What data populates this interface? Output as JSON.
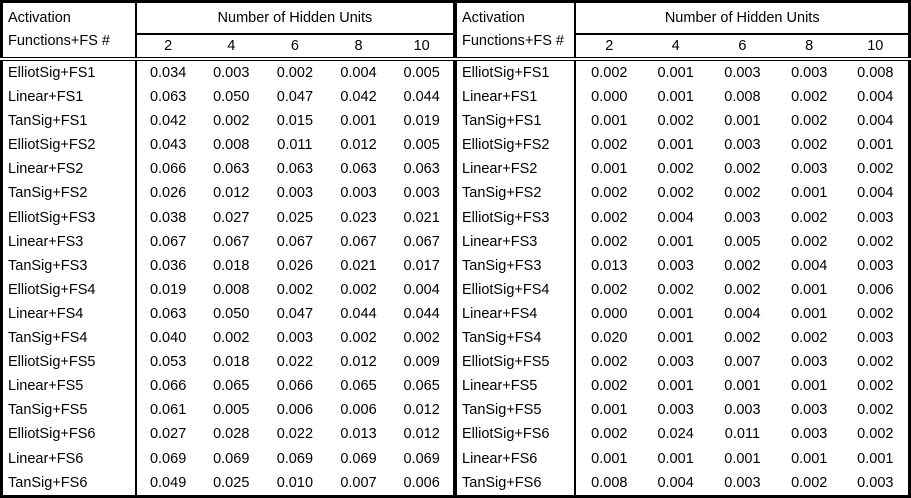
{
  "tables": [
    {
      "side": "left",
      "header": {
        "title_line1": "Activation",
        "title_line2": "Functions+FS #",
        "span_title": "Number of Hidden Units",
        "units": [
          "2",
          "4",
          "6",
          "8",
          "10"
        ]
      },
      "rows": [
        {
          "label": "ElliotSig+FS1",
          "values": [
            "0.034",
            "0.003",
            "0.002",
            "0.004",
            "0.005"
          ]
        },
        {
          "label": "Linear+FS1",
          "values": [
            "0.063",
            "0.050",
            "0.047",
            "0.042",
            "0.044"
          ]
        },
        {
          "label": "TanSig+FS1",
          "values": [
            "0.042",
            "0.002",
            "0.015",
            "0.001",
            "0.019"
          ]
        },
        {
          "label": "ElliotSig+FS2",
          "values": [
            "0.043",
            "0.008",
            "0.011",
            "0.012",
            "0.005"
          ]
        },
        {
          "label": "Linear+FS2",
          "values": [
            "0.066",
            "0.063",
            "0.063",
            "0.063",
            "0.063"
          ]
        },
        {
          "label": "TanSig+FS2",
          "values": [
            "0.026",
            "0.012",
            "0.003",
            "0.003",
            "0.003"
          ]
        },
        {
          "label": "ElliotSig+FS3",
          "values": [
            "0.038",
            "0.027",
            "0.025",
            "0.023",
            "0.021"
          ]
        },
        {
          "label": "Linear+FS3",
          "values": [
            "0.067",
            "0.067",
            "0.067",
            "0.067",
            "0.067"
          ]
        },
        {
          "label": "TanSig+FS3",
          "values": [
            "0.036",
            "0.018",
            "0.026",
            "0.021",
            "0.017"
          ]
        },
        {
          "label": "ElliotSig+FS4",
          "values": [
            "0.019",
            "0.008",
            "0.002",
            "0.002",
            "0.004"
          ]
        },
        {
          "label": "Linear+FS4",
          "values": [
            "0.063",
            "0.050",
            "0.047",
            "0.044",
            "0.044"
          ]
        },
        {
          "label": "TanSig+FS4",
          "values": [
            "0.040",
            "0.002",
            "0.003",
            "0.002",
            "0.002"
          ]
        },
        {
          "label": "ElliotSig+FS5",
          "values": [
            "0.053",
            "0.018",
            "0.022",
            "0.012",
            "0.009"
          ]
        },
        {
          "label": "Linear+FS5",
          "values": [
            "0.066",
            "0.065",
            "0.066",
            "0.065",
            "0.065"
          ]
        },
        {
          "label": "TanSig+FS5",
          "values": [
            "0.061",
            "0.005",
            "0.006",
            "0.006",
            "0.012"
          ]
        },
        {
          "label": "ElliotSig+FS6",
          "values": [
            "0.027",
            "0.028",
            "0.022",
            "0.013",
            "0.012"
          ]
        },
        {
          "label": "Linear+FS6",
          "values": [
            "0.069",
            "0.069",
            "0.069",
            "0.069",
            "0.069"
          ]
        },
        {
          "label": "TanSig+FS6",
          "values": [
            "0.049",
            "0.025",
            "0.010",
            "0.007",
            "0.006"
          ]
        }
      ]
    },
    {
      "side": "right",
      "header": {
        "title_line1": "Activation",
        "title_line2": "Functions+FS #",
        "span_title": "Number of Hidden Units",
        "units": [
          "2",
          "4",
          "6",
          "8",
          "10"
        ]
      },
      "rows": [
        {
          "label": "ElliotSig+FS1",
          "values": [
            "0.002",
            "0.001",
            "0.003",
            "0.003",
            "0.008"
          ]
        },
        {
          "label": "Linear+FS1",
          "values": [
            "0.000",
            "0.001",
            "0.008",
            "0.002",
            "0.004"
          ]
        },
        {
          "label": "TanSig+FS1",
          "values": [
            "0.001",
            "0.002",
            "0.001",
            "0.002",
            "0.004"
          ]
        },
        {
          "label": "ElliotSig+FS2",
          "values": [
            "0.002",
            "0.001",
            "0.003",
            "0.002",
            "0.001"
          ]
        },
        {
          "label": "Linear+FS2",
          "values": [
            "0.001",
            "0.002",
            "0.002",
            "0.003",
            "0.002"
          ]
        },
        {
          "label": "TanSig+FS2",
          "values": [
            "0.002",
            "0.002",
            "0.002",
            "0.001",
            "0.004"
          ]
        },
        {
          "label": "ElliotSig+FS3",
          "values": [
            "0.002",
            "0.004",
            "0.003",
            "0.002",
            "0.003"
          ]
        },
        {
          "label": "Linear+FS3",
          "values": [
            "0.002",
            "0.001",
            "0.005",
            "0.002",
            "0.002"
          ]
        },
        {
          "label": "TanSig+FS3",
          "values": [
            "0.013",
            "0.003",
            "0.002",
            "0.004",
            "0.003"
          ]
        },
        {
          "label": "ElliotSig+FS4",
          "values": [
            "0.002",
            "0.002",
            "0.002",
            "0.001",
            "0.006"
          ]
        },
        {
          "label": "Linear+FS4",
          "values": [
            "0.000",
            "0.001",
            "0.004",
            "0.001",
            "0.002"
          ]
        },
        {
          "label": "TanSig+FS4",
          "values": [
            "0.020",
            "0.001",
            "0.002",
            "0.002",
            "0.003"
          ]
        },
        {
          "label": "ElliotSig+FS5",
          "values": [
            "0.002",
            "0.003",
            "0.007",
            "0.003",
            "0.002"
          ]
        },
        {
          "label": "Linear+FS5",
          "values": [
            "0.002",
            "0.001",
            "0.001",
            "0.001",
            "0.002"
          ]
        },
        {
          "label": "TanSig+FS5",
          "values": [
            "0.001",
            "0.003",
            "0.003",
            "0.003",
            "0.002"
          ]
        },
        {
          "label": "ElliotSig+FS6",
          "values": [
            "0.002",
            "0.024",
            "0.011",
            "0.003",
            "0.002"
          ]
        },
        {
          "label": "Linear+FS6",
          "values": [
            "0.001",
            "0.001",
            "0.001",
            "0.001",
            "0.001"
          ]
        },
        {
          "label": "TanSig+FS6",
          "values": [
            "0.008",
            "0.004",
            "0.003",
            "0.002",
            "0.003"
          ]
        }
      ]
    }
  ]
}
